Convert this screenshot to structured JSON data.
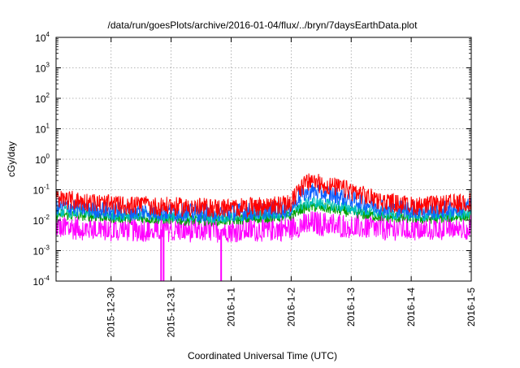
{
  "chart_data": {
    "type": "line",
    "title": "/data/run/goesPlots/archive/2016-01-04/flux/../bryn/7daysEarthData.plot",
    "xlabel": "Coordinated Universal Time (UTC)",
    "ylabel": "cGy/day",
    "yscale": "log",
    "ylim": [
      0.0001,
      10000
    ],
    "xlim": [
      "2015-12-29T02:00",
      "2016-01-05T00:00"
    ],
    "grid": true,
    "legend": "none",
    "x_ticks": [
      {
        "value": "2015-12-30",
        "label": "2015-12-30"
      },
      {
        "value": "2015-12-31",
        "label": "2015-12-31"
      },
      {
        "value": "2016-01-01",
        "label": "2016-1-1"
      },
      {
        "value": "2016-01-02",
        "label": "2016-1-2"
      },
      {
        "value": "2016-01-03",
        "label": "2016-1-3"
      },
      {
        "value": "2016-01-04",
        "label": "2016-1-4"
      },
      {
        "value": "2016-01-05",
        "label": "2016-1-5"
      }
    ],
    "y_ticks": [
      {
        "value": 0.0001,
        "base": "10",
        "exp": "-4"
      },
      {
        "value": 0.001,
        "base": "10",
        "exp": "-3"
      },
      {
        "value": 0.01,
        "base": "10",
        "exp": "-2"
      },
      {
        "value": 0.1,
        "base": "10",
        "exp": "-1"
      },
      {
        "value": 1,
        "base": "10",
        "exp": "0"
      },
      {
        "value": 10,
        "base": "10",
        "exp": "1"
      },
      {
        "value": 100,
        "base": "10",
        "exp": "2"
      },
      {
        "value": 1000,
        "base": "10",
        "exp": "3"
      },
      {
        "value": 10000,
        "base": "10",
        "exp": "4"
      }
    ],
    "x": [
      "2015-12-29T02:00",
      "2015-12-29T08:00",
      "2015-12-29T14:00",
      "2015-12-29T20:00",
      "2015-12-30T00:00",
      "2015-12-30T06:00",
      "2015-12-30T12:00",
      "2015-12-30T18:00",
      "2015-12-31T00:00",
      "2015-12-31T06:00",
      "2015-12-31T12:00",
      "2015-12-31T18:00",
      "2016-01-01T00:00",
      "2016-01-01T06:00",
      "2016-01-01T12:00",
      "2016-01-01T18:00",
      "2016-01-02T00:00",
      "2016-01-02T03:00",
      "2016-01-02T06:00",
      "2016-01-02T09:00",
      "2016-01-02T12:00",
      "2016-01-02T18:00",
      "2016-01-03T00:00",
      "2016-01-03T06:00",
      "2016-01-03T12:00",
      "2016-01-03T18:00",
      "2016-01-04T00:00",
      "2016-01-04T06:00",
      "2016-01-04T12:00",
      "2016-01-04T18:00",
      "2016-01-05T00:00"
    ],
    "series": [
      {
        "color": "#ff0000",
        "values": [
          0.05,
          0.045,
          0.04,
          0.035,
          0.032,
          0.03,
          0.03,
          0.028,
          0.028,
          0.026,
          0.026,
          0.025,
          0.025,
          0.026,
          0.028,
          0.03,
          0.035,
          0.1,
          0.16,
          0.18,
          0.15,
          0.12,
          0.09,
          0.06,
          0.04,
          0.035,
          0.03,
          0.03,
          0.032,
          0.035,
          0.04
        ]
      },
      {
        "color": "#1060ff",
        "values": [
          0.03,
          0.028,
          0.025,
          0.022,
          0.02,
          0.02,
          0.02,
          0.019,
          0.019,
          0.018,
          0.018,
          0.018,
          0.018,
          0.019,
          0.02,
          0.022,
          0.025,
          0.06,
          0.08,
          0.09,
          0.08,
          0.065,
          0.05,
          0.035,
          0.028,
          0.025,
          0.022,
          0.02,
          0.022,
          0.025,
          0.028
        ]
      },
      {
        "color": "#00a000",
        "values": [
          0.016,
          0.015,
          0.014,
          0.013,
          0.012,
          0.012,
          0.012,
          0.011,
          0.011,
          0.01,
          0.01,
          0.01,
          0.01,
          0.011,
          0.012,
          0.013,
          0.014,
          0.022,
          0.026,
          0.028,
          0.026,
          0.022,
          0.018,
          0.015,
          0.013,
          0.012,
          0.012,
          0.011,
          0.012,
          0.013,
          0.014
        ]
      },
      {
        "color": "#00c0c0",
        "values": [
          0.02,
          0.019,
          0.018,
          0.016,
          0.015,
          0.015,
          0.015,
          0.014,
          0.014,
          0.013,
          0.013,
          0.013,
          0.013,
          0.014,
          0.015,
          0.016,
          0.018,
          0.03,
          0.035,
          0.04,
          0.035,
          0.03,
          0.024,
          0.02,
          0.017,
          0.016,
          0.015,
          0.014,
          0.015,
          0.016,
          0.018
        ]
      },
      {
        "color": "#ff00ff",
        "values": [
          0.006,
          0.006,
          0.0055,
          0.0055,
          0.005,
          0.005,
          0.005,
          0.005,
          0.005,
          0.0048,
          0.0048,
          0.0048,
          0.0048,
          0.005,
          0.005,
          0.0052,
          0.0055,
          0.007,
          0.0075,
          0.008,
          0.0075,
          0.007,
          0.0065,
          0.006,
          0.0055,
          0.0055,
          0.0052,
          0.0052,
          0.0055,
          0.0058,
          0.006
        ]
      }
    ]
  }
}
